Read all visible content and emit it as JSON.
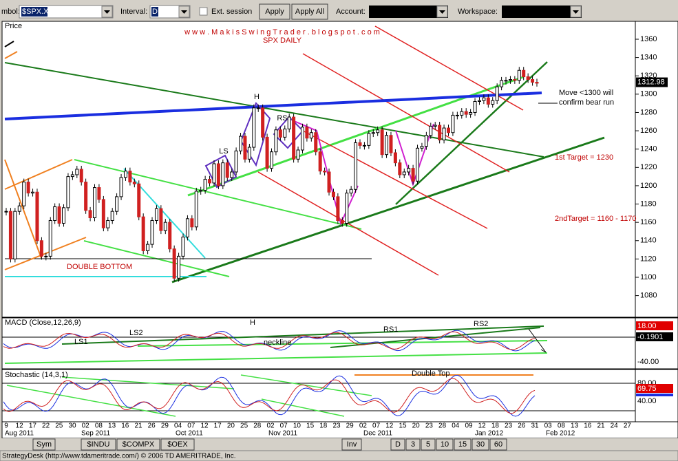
{
  "toolbar": {
    "symbol_label": "mbol:",
    "symbol": "$SPX.X",
    "interval_label": "Interval:",
    "interval": "D",
    "ext_session": "Ext. session",
    "apply": "Apply",
    "apply_all": "Apply All",
    "account_label": "Account:",
    "workspace_label": "Workspace:"
  },
  "price_panel": {
    "label": "Price",
    "website": "w w w . M a k i s S w i n g T r a d e r . b l o g s p o t . c o m",
    "subtitle": "SPX DAILY",
    "yticks": [
      1080,
      1100,
      1120,
      1140,
      1160,
      1180,
      1200,
      1220,
      1240,
      1260,
      1280,
      1300,
      1320,
      1340,
      1360
    ],
    "last_price": 1312.98,
    "closes": [
      1172,
      1120,
      1172,
      1178,
      1204,
      1192,
      1193,
      1140,
      1123,
      1123,
      1162,
      1177,
      1159,
      1176,
      1210,
      1212,
      1218,
      1204,
      1173,
      1165,
      1198,
      1185,
      1154,
      1162,
      1172,
      1188,
      1209,
      1216,
      1204,
      1202,
      1166,
      1129,
      1136,
      1162,
      1175,
      1151,
      1160,
      1131,
      1099,
      1123,
      1144,
      1164,
      1155,
      1194,
      1195,
      1207,
      1203,
      1224,
      1200,
      1225,
      1209,
      1215,
      1238,
      1254,
      1229,
      1242,
      1285,
      1285,
      1253,
      1219,
      1237,
      1261,
      1253,
      1262,
      1275,
      1229,
      1239,
      1264,
      1252,
      1258,
      1237,
      1216,
      1215,
      1193,
      1188,
      1162,
      1159,
      1192,
      1196,
      1247,
      1244,
      1244,
      1257,
      1258,
      1261,
      1234,
      1255,
      1236,
      1225,
      1212,
      1215,
      1219,
      1205,
      1241,
      1243,
      1255,
      1265,
      1266,
      1250,
      1263,
      1258,
      1277,
      1277,
      1281,
      1278,
      1280,
      1292,
      1293,
      1296,
      1289,
      1293,
      1308,
      1315,
      1315,
      1316,
      1315,
      1326,
      1319,
      1316,
      1313,
      1312
    ],
    "annotations": {
      "h": "H",
      "ls": "LS",
      "rs": "RS",
      "double_bottom": "DOUBLE BOTTOM",
      "move_line1": "Move <1300 will",
      "move_line2": "confirm bear run",
      "target1": "1st Target = 1230",
      "target2": "2ndTarget = 1160 - 1170"
    }
  },
  "macd_panel": {
    "label": "MACD (Close,12,26,9)",
    "value1": "18.00",
    "value2": "-0.1901",
    "value3": "-40.00",
    "ls1": "LS1",
    "ls2": "LS2",
    "h": "H",
    "neckline": "neckline",
    "rs1": "RS1",
    "rs2": "RS2"
  },
  "stochastic_panel": {
    "label": "Stochastic (14,3,1)",
    "double_top": "Double Top",
    "value1": "80.00",
    "value2": "69.75",
    "value3": "40.00"
  },
  "date_axis": {
    "days": [
      "9",
      "12",
      "17",
      "22",
      "25",
      "30",
      "02",
      "08",
      "13",
      "16",
      "21",
      "26",
      "29",
      "04",
      "07",
      "12",
      "17",
      "20",
      "25",
      "28",
      "02",
      "07",
      "10",
      "15",
      "18",
      "23",
      "29",
      "02",
      "07",
      "12",
      "15",
      "20",
      "23",
      "28",
      "04",
      "09",
      "12",
      "18",
      "23",
      "26",
      "31",
      "03",
      "08",
      "13",
      "16",
      "21",
      "24",
      "27"
    ],
    "months": [
      "Aug 2011",
      "Sep 2011",
      "Oct 2011",
      "Nov 2011",
      "Dec 2011",
      "Jan 2012",
      "Feb 2012"
    ]
  },
  "tabs": {
    "sym": "Sym",
    "symbols": [
      "$INDU",
      "$COMPX",
      "$OEX"
    ],
    "inv": "Inv",
    "intervals": [
      "D",
      "3",
      "5",
      "10",
      "15",
      "30",
      "60"
    ]
  },
  "status_bar": "StrategyDesk (http://www.tdameritrade.com/) © 2006 TD AMERITRADE, Inc."
}
